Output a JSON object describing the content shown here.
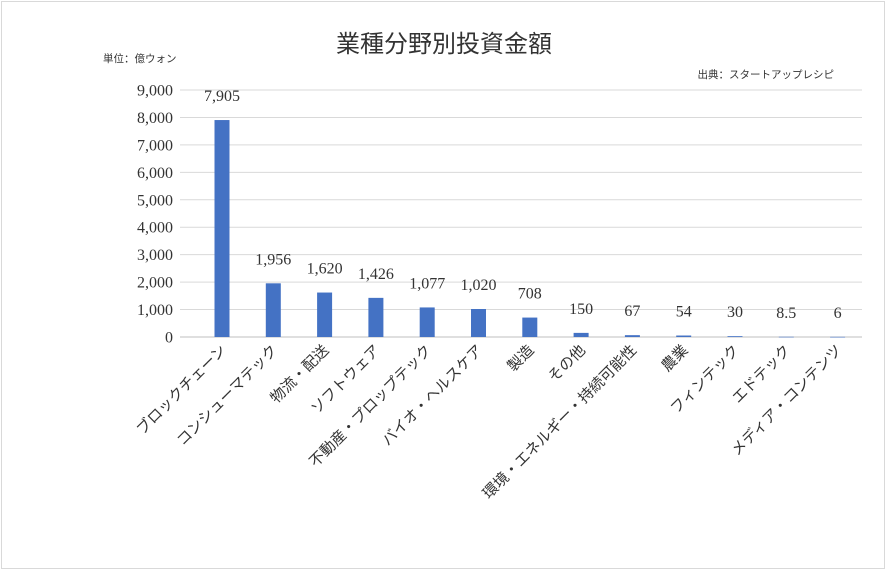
{
  "chart_data": {
    "type": "bar",
    "title": "業種分野別投資金額",
    "unit_note": "単位：億ウォン",
    "source_note": "出典：スタートアップレシピ",
    "categories": [
      "ブロックチェーン",
      "コンシューマテック",
      "物流・配送",
      "ソフトウェア",
      "不動産・プロップテック",
      "バイオ・ヘルスケア",
      "製造",
      "その他",
      "環境・エネルギー・持続可能性",
      "農業",
      "フィンテック",
      "エドテック",
      "メディア・コンテンツ"
    ],
    "values": [
      7905,
      1956,
      1620,
      1426,
      1077,
      1020,
      708,
      150,
      67,
      54,
      30,
      8.5,
      6
    ],
    "value_labels": [
      "7,905",
      "1,956",
      "1,620",
      "1,426",
      "1,077",
      "1,020",
      "708",
      "150",
      "67",
      "54",
      "30",
      "8.5",
      "6"
    ],
    "ylim": [
      0,
      9000
    ],
    "yticks": [
      0,
      1000,
      2000,
      3000,
      4000,
      5000,
      6000,
      7000,
      8000,
      9000
    ],
    "ytick_labels": [
      "0",
      "1,000",
      "2,000",
      "3,000",
      "4,000",
      "5,000",
      "6,000",
      "7,000",
      "8,000",
      "9,000"
    ],
    "grid": true,
    "bar_color": "#4472c4"
  }
}
